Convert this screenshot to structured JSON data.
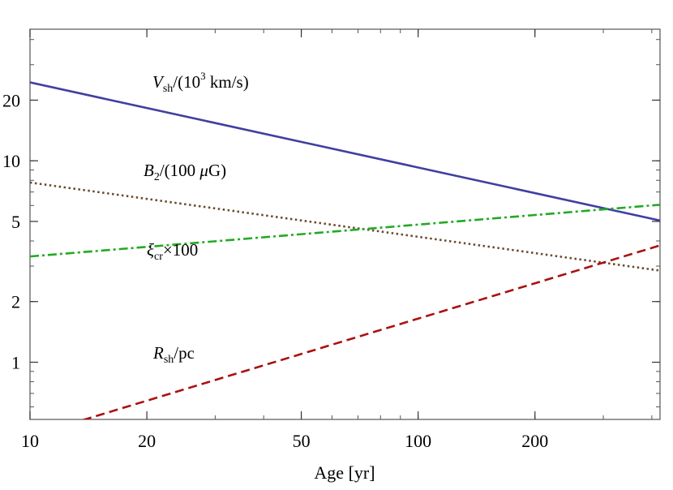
{
  "chart_data": {
    "type": "line",
    "xlabel": "Age [yr]",
    "ylabel": "",
    "title": "",
    "xscale": "log",
    "yscale": "log",
    "xlim": [
      10,
      420
    ],
    "ylim": [
      0.52,
      45
    ],
    "xticks": [
      10,
      20,
      50,
      100,
      200
    ],
    "xtick_labels": [
      "10",
      "20",
      "50",
      "100",
      "200"
    ],
    "yticks": [
      1,
      2,
      5,
      10,
      20
    ],
    "ytick_labels": [
      "1",
      "2",
      "5",
      "10",
      "20"
    ],
    "grid": false,
    "legend": "none",
    "series": [
      {
        "key": "vsh",
        "label_main": "V",
        "label_sub": "sh",
        "label_rest": "/(10",
        "label_sup": "3",
        "label_tail": " km/s)",
        "color": "#4040a0",
        "dash": "solid",
        "x": [
          10,
          420
        ],
        "y": [
          24.5,
          5.05
        ]
      },
      {
        "key": "b2",
        "label_main": "B",
        "label_sub": "2",
        "label_rest": "/(100 ",
        "label_mu": "μ",
        "label_tail": "G)",
        "color": "#6b4a2e",
        "dash": "dotted",
        "x": [
          10,
          420
        ],
        "y": [
          7.8,
          2.85
        ]
      },
      {
        "key": "xicr",
        "label_main": "ξ",
        "label_sub": "cr",
        "label_tail": "×100",
        "color": "#22aa22",
        "dash": "dashdot",
        "x": [
          10,
          420
        ],
        "y": [
          3.35,
          6.05
        ]
      },
      {
        "key": "rsh",
        "label_main": "R",
        "label_sub": "sh",
        "label_tail": "/pc",
        "color": "#aa1111",
        "dash": "dashed",
        "x": [
          10,
          420
        ],
        "y": [
          0.43,
          3.8
        ]
      }
    ]
  }
}
